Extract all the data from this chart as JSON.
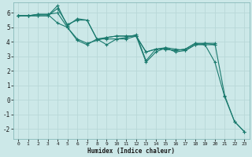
{
  "xlabel": "Humidex (Indice chaleur)",
  "background_color": "#cce8e8",
  "grid_color": "#b8d8d8",
  "line_color": "#1a7a6e",
  "ylim": [
    -2.7,
    6.7
  ],
  "xlim": [
    -0.5,
    23.5
  ],
  "yticks": [
    -2,
    -1,
    0,
    1,
    2,
    3,
    4,
    5,
    6
  ],
  "xticks": [
    0,
    1,
    2,
    3,
    4,
    5,
    6,
    7,
    8,
    9,
    10,
    11,
    12,
    13,
    14,
    15,
    16,
    17,
    18,
    19,
    20,
    21,
    22,
    23
  ],
  "lines": [
    {
      "x": [
        0,
        1,
        2,
        3,
        4,
        5,
        6,
        7,
        8,
        9,
        10,
        11,
        12,
        13,
        14,
        15,
        16,
        17,
        18,
        19,
        20,
        21,
        22,
        23
      ],
      "y": [
        5.8,
        5.8,
        5.8,
        5.8,
        6.3,
        5.2,
        5.5,
        5.5,
        4.2,
        4.2,
        4.2,
        4.2,
        4.4,
        2.6,
        3.3,
        3.6,
        3.5,
        3.4,
        3.8,
        3.8,
        2.6,
        0.2,
        -1.5,
        -2.2
      ]
    },
    {
      "x": [
        0,
        1,
        2,
        3,
        4,
        5,
        6,
        7,
        8,
        9,
        10,
        11,
        12,
        13,
        14,
        15,
        16,
        17,
        18,
        19,
        20,
        21,
        22,
        23
      ],
      "y": [
        5.8,
        5.8,
        5.8,
        5.8,
        6.5,
        5.1,
        5.6,
        5.5,
        4.2,
        3.8,
        4.2,
        4.3,
        4.5,
        2.7,
        3.5,
        3.6,
        3.3,
        3.4,
        3.8,
        3.9,
        3.9,
        0.3,
        -1.5,
        -2.2
      ]
    },
    {
      "x": [
        0,
        1,
        2,
        3,
        4,
        5,
        6,
        7,
        8,
        9,
        10,
        11,
        12,
        13,
        14,
        15,
        16,
        17,
        18,
        19,
        20
      ],
      "y": [
        5.8,
        5.8,
        5.9,
        5.9,
        6.0,
        5.0,
        4.1,
        3.8,
        4.2,
        4.3,
        4.4,
        4.4,
        4.4,
        3.3,
        3.5,
        3.5,
        3.4,
        3.5,
        3.9,
        3.9,
        3.8
      ]
    },
    {
      "x": [
        0,
        1,
        2,
        3,
        4,
        5,
        6,
        7,
        8,
        9,
        10,
        11,
        12,
        13,
        14,
        15,
        16,
        17,
        18,
        19,
        20
      ],
      "y": [
        5.8,
        5.8,
        5.9,
        5.9,
        5.3,
        5.0,
        4.2,
        3.9,
        4.1,
        4.3,
        4.4,
        4.4,
        4.4,
        3.3,
        3.5,
        3.5,
        3.4,
        3.5,
        3.9,
        3.8,
        3.8
      ]
    }
  ]
}
